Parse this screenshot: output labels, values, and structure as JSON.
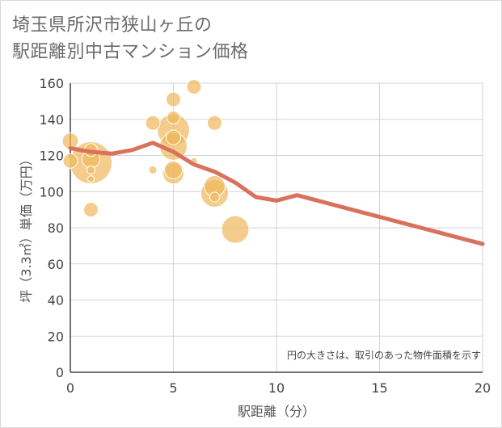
{
  "title_lines": [
    "埼玉県所沢市狭山ヶ丘の",
    "駅距離別中古マンション価格"
  ],
  "note": "円の大きさは、取引のあった物件面積を示す",
  "colors": {
    "bubble": "#f0b860",
    "line": "#d9725c",
    "grid": "#cdd5dc",
    "axis": "#444444"
  },
  "chart_data": {
    "type": "scatter",
    "title": "埼玉県所沢市狭山ヶ丘の駅距離別中古マンション価格",
    "xlabel": "駅距離（分）",
    "ylabel": "坪（3.3㎡）単価（万円）",
    "xlim": [
      0,
      20
    ],
    "ylim": [
      0,
      160
    ],
    "x_ticks": [
      0,
      5,
      10,
      15,
      20
    ],
    "y_ticks": [
      0,
      20,
      40,
      60,
      80,
      100,
      120,
      140,
      160
    ],
    "bubbles": [
      {
        "x": 0,
        "y": 128,
        "size": 10
      },
      {
        "x": 0,
        "y": 117,
        "size": 9
      },
      {
        "x": 1,
        "y": 123,
        "size": 8
      },
      {
        "x": 1,
        "y": 118,
        "size": 11
      },
      {
        "x": 1,
        "y": 116,
        "size": 26
      },
      {
        "x": 1,
        "y": 112,
        "size": 5
      },
      {
        "x": 1,
        "y": 107,
        "size": 4
      },
      {
        "x": 1,
        "y": 90,
        "size": 9
      },
      {
        "x": 4,
        "y": 138,
        "size": 9
      },
      {
        "x": 4,
        "y": 112,
        "size": 5
      },
      {
        "x": 5,
        "y": 151,
        "size": 9
      },
      {
        "x": 5,
        "y": 141,
        "size": 8
      },
      {
        "x": 5,
        "y": 134,
        "size": 20
      },
      {
        "x": 5,
        "y": 130,
        "size": 9
      },
      {
        "x": 5,
        "y": 125,
        "size": 17
      },
      {
        "x": 5,
        "y": 112,
        "size": 11
      },
      {
        "x": 5,
        "y": 110,
        "size": 13
      },
      {
        "x": 6,
        "y": 158,
        "size": 9
      },
      {
        "x": 6,
        "y": 117,
        "size": 4
      },
      {
        "x": 7,
        "y": 138,
        "size": 9
      },
      {
        "x": 7,
        "y": 103,
        "size": 13
      },
      {
        "x": 7,
        "y": 99,
        "size": 17
      },
      {
        "x": 7,
        "y": 97,
        "size": 6
      },
      {
        "x": 8,
        "y": 79,
        "size": 17
      }
    ],
    "series": [
      {
        "type": "line",
        "x": [
          0,
          1,
          2,
          3,
          4,
          5,
          6,
          7,
          8,
          9,
          10,
          11,
          12,
          13,
          14,
          15,
          16,
          17,
          18,
          19,
          20
        ],
        "values": [
          124,
          122,
          121,
          123,
          127,
          122,
          115,
          111,
          105,
          97,
          95,
          98,
          95,
          92,
          89,
          86,
          83,
          80,
          77,
          74,
          71
        ]
      }
    ]
  }
}
